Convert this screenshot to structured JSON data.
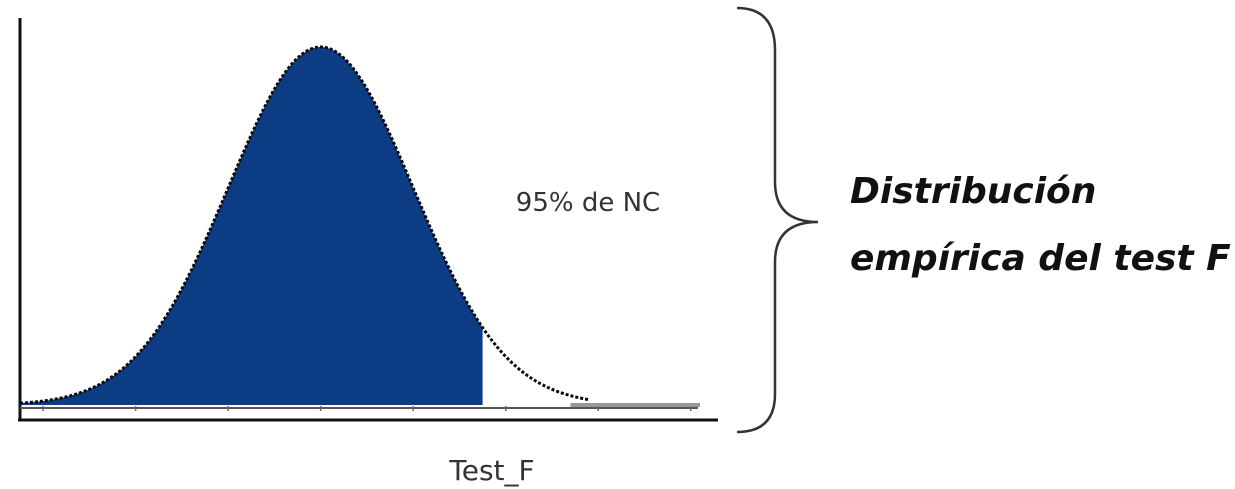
{
  "chart_data": {
    "type": "area",
    "title": "",
    "xlabel": "Test_F",
    "ylabel": "",
    "distribution": {
      "shape": "bell",
      "mean": 0,
      "sd": 1
    },
    "xlim": [
      -3.25,
      4.1
    ],
    "ylim": [
      0,
      0.4
    ],
    "shaded_region": {
      "from": -3.25,
      "to": 1.75,
      "label": "95% de NC"
    },
    "grid": false,
    "legend": "none"
  },
  "annotation": {
    "line1": "Distribución",
    "line2": "empírica del test F"
  },
  "colors": {
    "fill": "#0c3d84",
    "curve": "#0a0a0a",
    "axis": "#111111",
    "tail_line": "#999999",
    "bracket": "#333333"
  }
}
